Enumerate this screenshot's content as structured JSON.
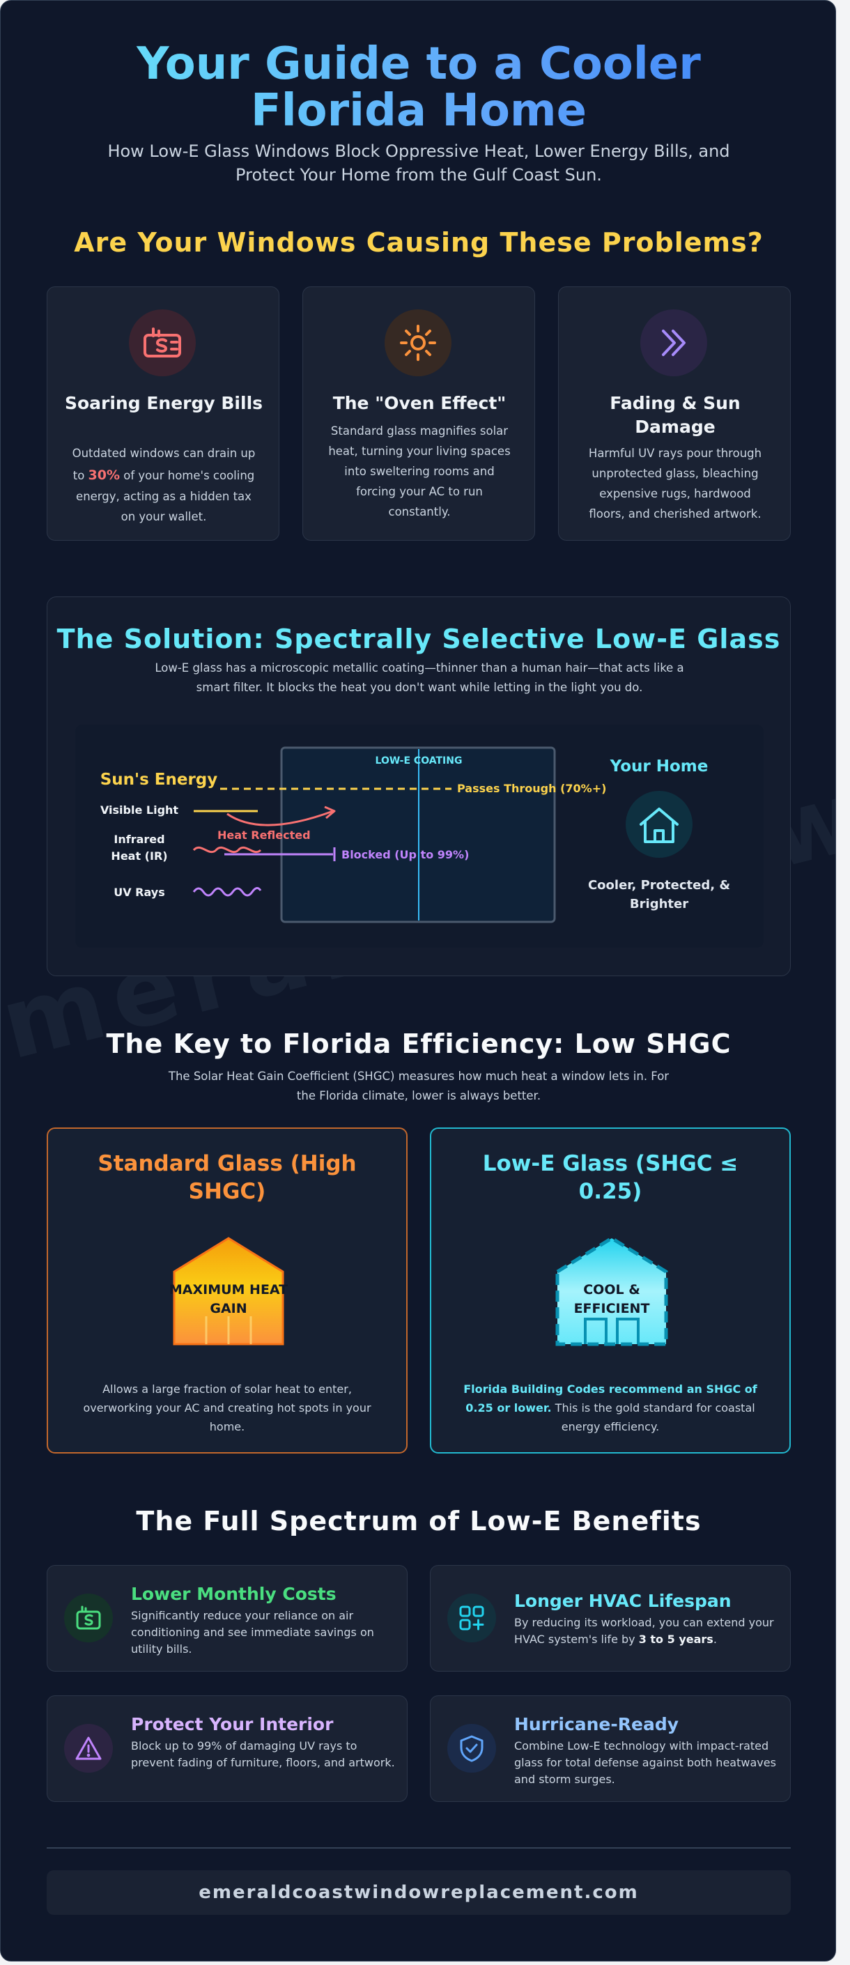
{
  "header": {
    "title": "Your Guide to a Cooler Florida Home",
    "subtitle": "How Low-E Glass Windows Block Oppressive Heat, Lower Energy Bills, and Protect Your Home from the Gulf Coast Sun."
  },
  "watermark": "emeraldcoastwindowreplacement",
  "problems": {
    "heading": "Are Your Windows Causing These Problems?",
    "cards": [
      {
        "icon": "money-icon",
        "title": "Soaring Energy Bills",
        "text_before": "Outdated windows can drain up to ",
        "highlight": "30%",
        "text_after": " of your home's cooling energy, acting as a hidden tax on your wallet.",
        "color": "#f87171"
      },
      {
        "icon": "sun-icon",
        "title": "The \"Oven Effect\"",
        "text": "Standard glass magnifies solar heat, turning your living spaces into sweltering rooms and forcing your AC to run constantly.",
        "color": "#fb923c"
      },
      {
        "icon": "chevrons-right-icon",
        "title": "Fading & Sun Damage",
        "text": "Harmful UV rays pour through unprotected glass, bleaching expensive rugs, hardwood floors, and cherished artwork.",
        "color": "#a78bfa"
      }
    ]
  },
  "solution": {
    "heading": "The Solution: Spectrally Selective Low-E Glass",
    "text": "Low-E glass has a microscopic metallic coating—thinner than a human hair—that acts like a smart filter. It blocks the heat you don't want while letting in the light you do.",
    "diagram": {
      "sun_label": "Sun's Energy",
      "rays": [
        "Visible Light",
        "Infrared (IR)",
        "UV Rays"
      ],
      "coating_label": "LOW-E COATING",
      "passes_label": "Passes Through (70%+)",
      "reflected_label": "Heat Reflected",
      "blocked_label": "Blocked (Up to 99%)",
      "home_label": "Your Home",
      "home_caption": "Cooler, Protected, & Brighter"
    }
  },
  "shgc": {
    "heading": "The Key to Florida Efficiency: Low SHGC",
    "text": "The Solar Heat Gain Coefficient (SHGC) measures how much heat a window lets in. For the Florida climate, lower is always better.",
    "standard": {
      "title": "Standard Glass (High SHGC)",
      "house_label": "MAXIMUM HEAT GAIN",
      "text": "Allows a large fraction of solar heat to enter, overworking your AC and creating hot spots in your home.",
      "color": "#fb923c"
    },
    "lowe": {
      "title": "Low-E Glass (SHGC ≤ 0.25)",
      "house_label": "COOL & EFFICIENT",
      "text_bold": "Florida Building Codes recommend an SHGC of 0.25 or lower.",
      "text_rest": " This is the gold standard for coastal energy efficiency.",
      "color": "#67e8f9"
    }
  },
  "benefits": {
    "heading": "The Full Spectrum of Low-E Benefits",
    "items": [
      {
        "icon": "money-icon",
        "title": "Lower Monthly Costs",
        "text": "Significantly reduce your reliance on air conditioning and see immediate savings on utility bills.",
        "color": "#4ade80"
      },
      {
        "icon": "apps-icon",
        "title": "Longer HVAC Lifespan",
        "text_before": "By reducing its workload, you can extend your HVAC system's life by ",
        "text_bold": "3 to 5 years",
        "text_after": ".",
        "color": "#67e8f9"
      },
      {
        "icon": "warning-icon",
        "title": "Protect Your Interior",
        "text": "Block up to 99% of damaging UV rays to prevent fading of furniture, floors, and artwork.",
        "color": "#c084fc"
      },
      {
        "icon": "shield-check-icon",
        "title": "Hurricane-Ready",
        "text": "Combine Low-E technology with impact-rated glass for total defense against both heatwaves and storm surges.",
        "color": "#93c5fd"
      }
    ]
  },
  "footer": {
    "url": "emeraldcoastwindowreplacement.com"
  }
}
